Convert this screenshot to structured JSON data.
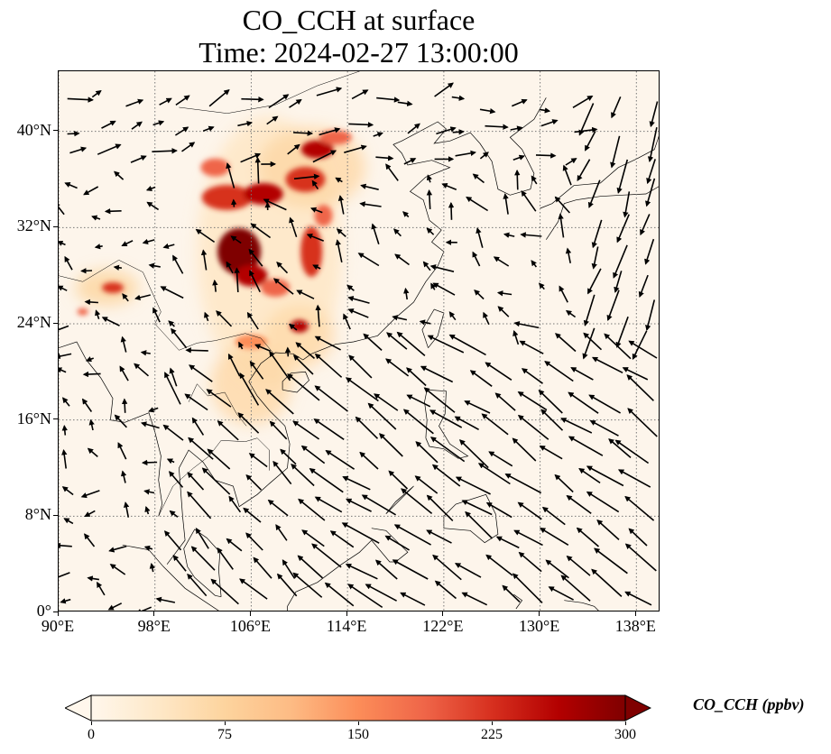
{
  "title": {
    "line1": "CO_CCH at surface",
    "line2": "Time: 2024-02-27 13:00:00"
  },
  "map": {
    "extent": {
      "lon_min": 90,
      "lon_max": 140,
      "lat_min": 0,
      "lat_max": 45
    },
    "lon_ticks": [
      {
        "value": 90,
        "label": "90°E"
      },
      {
        "value": 98,
        "label": "98°E"
      },
      {
        "value": 106,
        "label": "106°E"
      },
      {
        "value": 114,
        "label": "114°E"
      },
      {
        "value": 122,
        "label": "122°E"
      },
      {
        "value": 130,
        "label": "130°E"
      },
      {
        "value": 138,
        "label": "138°E"
      }
    ],
    "lat_ticks": [
      {
        "value": 0,
        "label": "0°"
      },
      {
        "value": 8,
        "label": "8°N"
      },
      {
        "value": 16,
        "label": "16°N"
      },
      {
        "value": 24,
        "label": "24°N"
      },
      {
        "value": 32,
        "label": "32°N"
      },
      {
        "value": 40,
        "label": "40°N"
      }
    ],
    "background_color": "#fdf5eb",
    "gridline_style": "dotted",
    "wind_vectors_shown": true
  },
  "colorbar": {
    "label": "CO_CCH (ppbv)",
    "ticks": [
      {
        "value": 0,
        "label": "0"
      },
      {
        "value": 75,
        "label": "75"
      },
      {
        "value": 150,
        "label": "150"
      },
      {
        "value": 225,
        "label": "225"
      },
      {
        "value": 300,
        "label": "300"
      }
    ],
    "min": 0,
    "max": 300,
    "colormap": "OrRd",
    "colors": [
      "#fff7ec",
      "#fee8c8",
      "#fdd49e",
      "#fdbb84",
      "#fc8d59",
      "#ef6548",
      "#d7301f",
      "#b30000",
      "#7f0000"
    ]
  }
}
